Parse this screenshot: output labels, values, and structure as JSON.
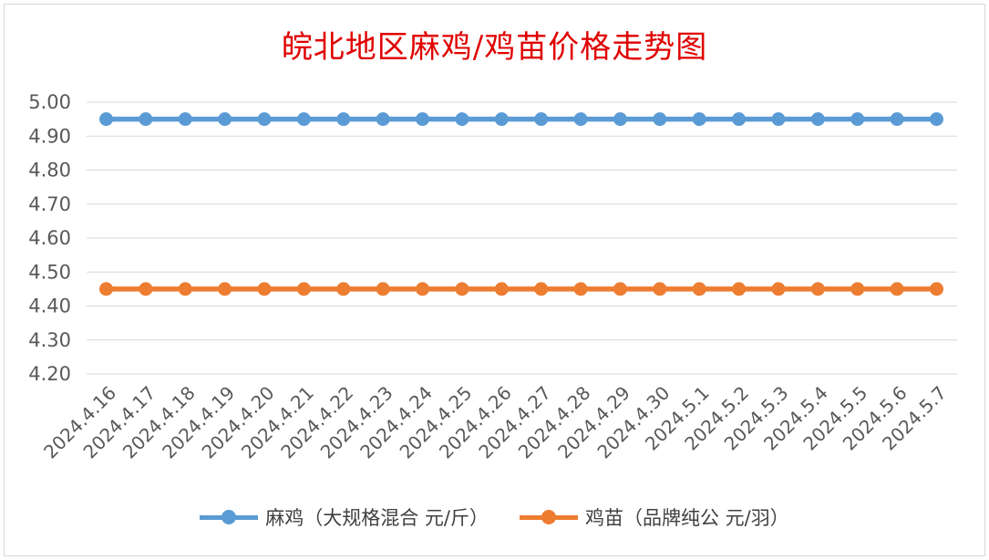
{
  "chart_data": {
    "type": "line",
    "title": "皖北地区麻鸡/鸡苗价格走势图",
    "categories": [
      "2024.4.16",
      "2024.4.17",
      "2024.4.18",
      "2024.4.19",
      "2024.4.20",
      "2024.4.21",
      "2024.4.22",
      "2024.4.23",
      "2024.4.24",
      "2024.4.25",
      "2024.4.26",
      "2024.4.27",
      "2024.4.28",
      "2024.4.29",
      "2024.4.30",
      "2024.5.1",
      "2024.5.2",
      "2024.5.3",
      "2024.5.4",
      "2024.5.5",
      "2024.5.6",
      "2024.5.7"
    ],
    "series": [
      {
        "name": "麻鸡（大规格混合 元/斤）",
        "color": "#5b9bd5",
        "values": [
          4.95,
          4.95,
          4.95,
          4.95,
          4.95,
          4.95,
          4.95,
          4.95,
          4.95,
          4.95,
          4.95,
          4.95,
          4.95,
          4.95,
          4.95,
          4.95,
          4.95,
          4.95,
          4.95,
          4.95,
          4.95,
          4.95
        ]
      },
      {
        "name": "鸡苗（品牌纯公 元/羽）",
        "color": "#ed7d31",
        "values": [
          4.45,
          4.45,
          4.45,
          4.45,
          4.45,
          4.45,
          4.45,
          4.45,
          4.45,
          4.45,
          4.45,
          4.45,
          4.45,
          4.45,
          4.45,
          4.45,
          4.45,
          4.45,
          4.45,
          4.45,
          4.45,
          4.45
        ]
      }
    ],
    "y_ticks": [
      "4.20",
      "4.30",
      "4.40",
      "4.50",
      "4.60",
      "4.70",
      "4.80",
      "4.90",
      "5.00"
    ],
    "ylim": [
      4.2,
      5.0
    ],
    "grid": true,
    "legend_position": "bottom",
    "title_color": "#e00000"
  }
}
